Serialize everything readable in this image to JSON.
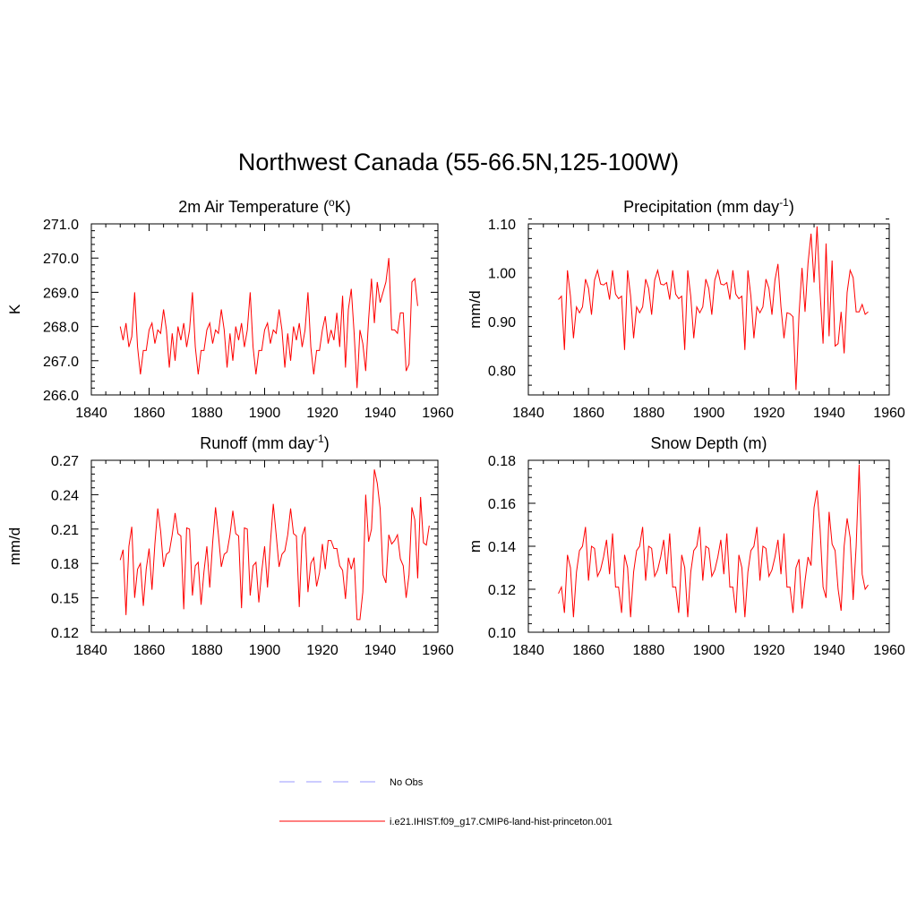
{
  "title": "Northwest Canada (55-66.5N,125-100W)",
  "colors": {
    "model": "#ff0000",
    "obs": "#9999ff",
    "axis": "#000000"
  },
  "chart_data": [
    {
      "type": "line",
      "title_main": "2m Air Temperature (",
      "title_sup": "o",
      "title_tail": "K)",
      "ylabel": "K",
      "xlim": [
        1840,
        1960
      ],
      "ylim": [
        266.0,
        271.0
      ],
      "xticks": [
        "1840",
        "1860",
        "1880",
        "1900",
        "1920",
        "1940",
        "1960"
      ],
      "yticks": [
        "266.0",
        "267.0",
        "268.0",
        "269.0",
        "270.0",
        "271.0"
      ],
      "x_start": 1850,
      "series": [
        {
          "name": "i.e21.IHIST.f09_g17.CMIP6-land-hist-princeton.001",
          "values": [
            268.0,
            267.6,
            268.1,
            267.4,
            267.7,
            269.0,
            267.4,
            266.6,
            267.3,
            267.3,
            267.9,
            268.1,
            267.5,
            267.9,
            267.8,
            268.5,
            267.9,
            266.8,
            267.8,
            267.0,
            268.0,
            267.6,
            268.1,
            267.4,
            267.9,
            269.0,
            267.4,
            266.6,
            267.3,
            267.3,
            267.9,
            268.1,
            267.5,
            267.9,
            267.8,
            268.5,
            267.9,
            266.8,
            267.8,
            267.0,
            268.0,
            267.6,
            268.1,
            267.4,
            267.9,
            269.0,
            267.4,
            266.6,
            267.3,
            267.3,
            267.9,
            268.1,
            267.5,
            267.9,
            267.8,
            268.5,
            267.9,
            266.8,
            267.8,
            267.0,
            268.0,
            267.6,
            268.1,
            267.4,
            267.9,
            269.0,
            267.4,
            266.6,
            267.3,
            267.3,
            267.9,
            268.3,
            267.5,
            267.9,
            267.6,
            268.4,
            267.4,
            268.9,
            266.8,
            268.5,
            269.1,
            267.8,
            266.2,
            267.9,
            267.5,
            266.7,
            268.2,
            269.4,
            268.1,
            269.3,
            268.7,
            269.0,
            269.3,
            270.0,
            267.9,
            267.9,
            267.8,
            268.4,
            268.4,
            266.7,
            266.9,
            269.3,
            269.4,
            268.6
          ]
        }
      ]
    },
    {
      "type": "line",
      "title_main": "Precipitation (mm day",
      "title_sup": "-1",
      "title_tail": ")",
      "ylabel": "mm/d",
      "xlim": [
        1840,
        1960
      ],
      "ylim": [
        0.75,
        1.1
      ],
      "xticks": [
        "1840",
        "1860",
        "1880",
        "1900",
        "1920",
        "1940",
        "1960"
      ],
      "yticks": [
        "0.80",
        "0.90",
        "1.00",
        "1.10"
      ],
      "x_start": 1850,
      "series": [
        {
          "name": "i.e21.IHIST.f09_g17.CMIP6-land-hist-princeton.001",
          "values": [
            0.945,
            0.952,
            0.842,
            1.005,
            0.952,
            0.866,
            0.93,
            0.918,
            0.93,
            0.987,
            0.968,
            0.914,
            0.985,
            1.005,
            0.977,
            0.975,
            0.98,
            0.945,
            1.005,
            0.956,
            0.947,
            0.952,
            0.842,
            1.005,
            0.952,
            0.866,
            0.93,
            0.918,
            0.93,
            0.987,
            0.968,
            0.914,
            0.985,
            1.005,
            0.977,
            0.975,
            0.98,
            0.945,
            1.005,
            0.956,
            0.947,
            0.952,
            0.842,
            1.005,
            0.952,
            0.866,
            0.93,
            0.918,
            0.93,
            0.987,
            0.968,
            0.914,
            0.985,
            1.005,
            0.977,
            0.975,
            0.98,
            0.945,
            1.005,
            0.956,
            0.947,
            0.952,
            0.842,
            1.005,
            0.952,
            0.866,
            0.93,
            0.918,
            0.93,
            0.987,
            0.968,
            0.914,
            0.985,
            1.018,
            0.93,
            0.866,
            0.918,
            0.916,
            0.91,
            0.76,
            0.915,
            1.01,
            0.92,
            1.02,
            1.08,
            0.98,
            1.095,
            0.96,
            0.855,
            1.06,
            0.87,
            1.025,
            0.85,
            0.855,
            0.92,
            0.835,
            0.96,
            1.005,
            0.99,
            0.92,
            0.92,
            0.935,
            0.915,
            0.92
          ]
        }
      ]
    },
    {
      "type": "line",
      "title_main": "Runoff (mm day",
      "title_sup": "-1",
      "title_tail": ")",
      "ylabel": "mm/d",
      "xlim": [
        1840,
        1960
      ],
      "ylim": [
        0.12,
        0.27
      ],
      "xticks": [
        "1840",
        "1860",
        "1880",
        "1900",
        "1920",
        "1940",
        "1960"
      ],
      "yticks": [
        "0.12",
        "0.15",
        "0.18",
        "0.21",
        "0.24",
        "0.27"
      ],
      "x_start": 1850,
      "series": [
        {
          "name": "i.e21.IHIST.f09_g17.CMIP6-land-hist-princeton.001",
          "values": [
            0.183,
            0.192,
            0.135,
            0.195,
            0.212,
            0.15,
            0.175,
            0.18,
            0.143,
            0.175,
            0.193,
            0.157,
            0.197,
            0.228,
            0.208,
            0.177,
            0.188,
            0.19,
            0.205,
            0.224,
            0.206,
            0.204,
            0.14,
            0.211,
            0.21,
            0.152,
            0.178,
            0.181,
            0.144,
            0.173,
            0.195,
            0.159,
            0.198,
            0.229,
            0.205,
            0.177,
            0.188,
            0.19,
            0.205,
            0.226,
            0.206,
            0.204,
            0.141,
            0.211,
            0.21,
            0.152,
            0.178,
            0.181,
            0.146,
            0.173,
            0.195,
            0.159,
            0.198,
            0.232,
            0.205,
            0.177,
            0.188,
            0.191,
            0.205,
            0.228,
            0.206,
            0.204,
            0.142,
            0.204,
            0.212,
            0.155,
            0.18,
            0.185,
            0.16,
            0.172,
            0.197,
            0.175,
            0.2,
            0.2,
            0.193,
            0.193,
            0.178,
            0.174,
            0.149,
            0.185,
            0.175,
            0.185,
            0.131,
            0.131,
            0.155,
            0.24,
            0.199,
            0.21,
            0.262,
            0.25,
            0.228,
            0.17,
            0.163,
            0.205,
            0.197,
            0.2,
            0.205,
            0.184,
            0.178,
            0.15,
            0.17,
            0.229,
            0.218,
            0.167,
            0.238,
            0.198,
            0.196,
            0.213
          ]
        }
      ]
    },
    {
      "type": "line",
      "title_main": "Snow Depth (m)",
      "title_sup": "",
      "title_tail": "",
      "ylabel": "m",
      "xlim": [
        1840,
        1960
      ],
      "ylim": [
        0.1,
        0.18
      ],
      "xticks": [
        "1840",
        "1860",
        "1880",
        "1900",
        "1920",
        "1940",
        "1960"
      ],
      "yticks": [
        "0.10",
        "0.12",
        "0.14",
        "0.16",
        "0.18"
      ],
      "x_start": 1850,
      "series": [
        {
          "name": "i.e21.IHIST.f09_g17.CMIP6-land-hist-princeton.001",
          "values": [
            0.118,
            0.121,
            0.109,
            0.136,
            0.13,
            0.107,
            0.128,
            0.138,
            0.14,
            0.149,
            0.124,
            0.14,
            0.139,
            0.126,
            0.129,
            0.135,
            0.143,
            0.127,
            0.146,
            0.121,
            0.121,
            0.109,
            0.136,
            0.13,
            0.107,
            0.128,
            0.138,
            0.14,
            0.149,
            0.124,
            0.14,
            0.139,
            0.126,
            0.129,
            0.135,
            0.143,
            0.127,
            0.146,
            0.121,
            0.121,
            0.109,
            0.136,
            0.13,
            0.107,
            0.128,
            0.138,
            0.14,
            0.149,
            0.124,
            0.14,
            0.139,
            0.126,
            0.129,
            0.135,
            0.143,
            0.127,
            0.146,
            0.121,
            0.121,
            0.109,
            0.136,
            0.13,
            0.107,
            0.128,
            0.138,
            0.14,
            0.149,
            0.124,
            0.14,
            0.139,
            0.126,
            0.129,
            0.135,
            0.143,
            0.127,
            0.146,
            0.121,
            0.121,
            0.109,
            0.13,
            0.134,
            0.111,
            0.124,
            0.135,
            0.131,
            0.158,
            0.166,
            0.148,
            0.121,
            0.116,
            0.156,
            0.141,
            0.138,
            0.12,
            0.11,
            0.14,
            0.153,
            0.144,
            0.115,
            0.14,
            0.178,
            0.127,
            0.12,
            0.122
          ]
        }
      ]
    }
  ],
  "legend": [
    {
      "label": "No Obs",
      "style": "dashed"
    },
    {
      "label": "i.e21.IHIST.f09_g17.CMIP6-land-hist-princeton.001",
      "style": "solid"
    }
  ]
}
